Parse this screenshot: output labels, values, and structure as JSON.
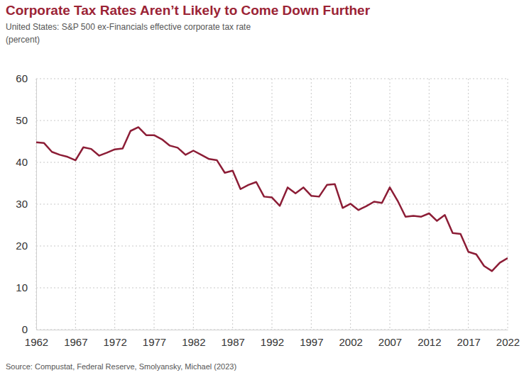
{
  "chart_data": {
    "type": "line",
    "title": "Corporate Tax Rates Aren’t Likely to Come Down Further",
    "subtitle": "United States: S&P 500 ex-Financials effective corporate tax rate",
    "y_label": "(percent)",
    "source": "Source: Compustat, Federal Reserve, Smolyansky, Michael (2023)",
    "x": [
      1962,
      1963,
      1964,
      1965,
      1966,
      1967,
      1968,
      1969,
      1970,
      1971,
      1972,
      1973,
      1974,
      1975,
      1976,
      1977,
      1978,
      1979,
      1980,
      1981,
      1982,
      1983,
      1984,
      1985,
      1986,
      1987,
      1988,
      1989,
      1990,
      1991,
      1992,
      1993,
      1994,
      1995,
      1996,
      1997,
      1998,
      1999,
      2000,
      2001,
      2002,
      2003,
      2004,
      2005,
      2006,
      2007,
      2008,
      2009,
      2010,
      2011,
      2012,
      2013,
      2014,
      2015,
      2016,
      2017,
      2018,
      2019,
      2020,
      2021,
      2022
    ],
    "values": [
      44.8,
      44.6,
      42.5,
      41.8,
      41.3,
      40.5,
      43.6,
      43.2,
      41.6,
      42.3,
      43.1,
      43.3,
      47.5,
      48.4,
      46.5,
      46.5,
      45.5,
      44.0,
      43.5,
      41.8,
      42.8,
      41.8,
      40.8,
      40.5,
      37.5,
      38.0,
      33.6,
      34.6,
      35.3,
      31.8,
      31.6,
      29.6,
      34.0,
      32.6,
      34.0,
      32.0,
      31.8,
      34.6,
      34.8,
      29.1,
      30.1,
      28.6,
      29.5,
      30.6,
      30.3,
      34.0,
      30.8,
      27.0,
      27.2,
      27.0,
      27.8,
      26.0,
      27.4,
      23.1,
      22.9,
      18.6,
      18.0,
      15.2,
      14.0,
      16.0,
      17.1
    ],
    "color": "#8c1d36",
    "xlim": [
      1962,
      2022
    ],
    "xticks": [
      1962,
      1967,
      1972,
      1977,
      1982,
      1987,
      1992,
      1997,
      2002,
      2007,
      2012,
      2017,
      2022
    ],
    "ylim": [
      0,
      60
    ],
    "yticks": [
      0,
      10,
      20,
      30,
      40,
      50,
      60
    ],
    "grid": true
  }
}
